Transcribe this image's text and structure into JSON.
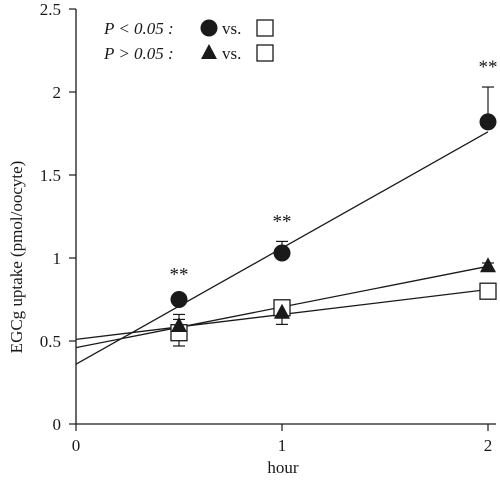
{
  "chart_data": {
    "type": "scatter",
    "title": "",
    "xlabel": "hour",
    "ylabel": "EGCg uptake (pmol/oocyte)",
    "xlim": [
      0,
      2
    ],
    "ylim": [
      0,
      2.5
    ],
    "x_ticks": [
      "0",
      "1",
      "2"
    ],
    "y_ticks": [
      "0",
      "0.5",
      "1",
      "1.5",
      "2",
      "2.5"
    ],
    "x_tick_values": [
      0,
      1,
      2
    ],
    "y_tick_values": [
      0,
      0.5,
      1,
      1.5,
      2,
      2.5
    ],
    "grid": false,
    "legend_position": "top-left",
    "legend": [
      {
        "prefix": "P < 0.05 :",
        "marker": "circle",
        "suffix": "vs.",
        "compare_marker": "square"
      },
      {
        "prefix": "P > 0.05 :",
        "marker": "triangle",
        "suffix": "vs.",
        "compare_marker": "square"
      }
    ],
    "series": [
      {
        "marker": "circle",
        "x": [
          0.5,
          1,
          2
        ],
        "y": [
          0.75,
          1.03,
          1.82
        ],
        "error": [
          0.03,
          0.07,
          0.21
        ],
        "fit": {
          "intercept": 0.36,
          "slope": 0.7
        }
      },
      {
        "marker": "triangle",
        "x": [
          0.5,
          1,
          2
        ],
        "y": [
          0.59,
          0.67,
          0.95
        ],
        "error": [
          0.07,
          0.07,
          0.02
        ],
        "fit": {
          "intercept": 0.46,
          "slope": 0.245
        }
      },
      {
        "marker": "square",
        "x": [
          0.5,
          1,
          2
        ],
        "y": [
          0.55,
          0.7,
          0.8
        ],
        "error": [
          0.08,
          0.04,
          0.02
        ],
        "fit": {
          "intercept": 0.51,
          "slope": 0.15
        }
      }
    ],
    "annotations": [
      {
        "text": "**",
        "x": 0.5
      },
      {
        "text": "**",
        "x": 1
      },
      {
        "text": "**",
        "x": 2
      }
    ]
  }
}
